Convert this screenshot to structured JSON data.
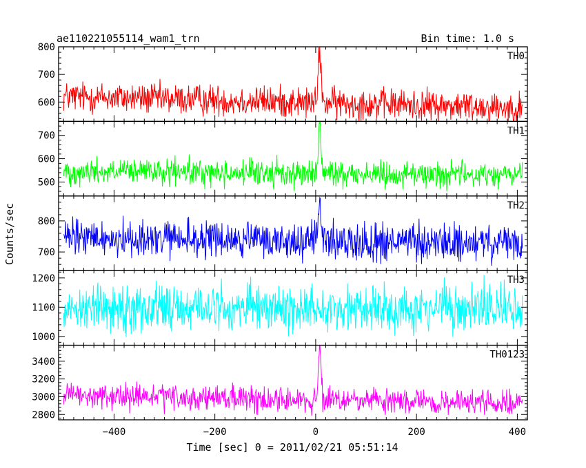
{
  "header": {
    "title": "ae110221055114_wam1_trn",
    "bin_time": "Bin time: 1.0 s"
  },
  "xlabel": "Time [sec] 0 = 2011/02/21 05:51:14",
  "ylabel": "Counts/sec",
  "chart_data": {
    "type": "line",
    "x_range": [
      -510,
      420
    ],
    "x_ticks": [
      -400,
      -200,
      0,
      200,
      400
    ],
    "x_tick_labels": [
      "−400",
      "−200",
      "0",
      "200",
      "400"
    ],
    "panels": [
      {
        "name": "TH0",
        "color": "#ff0000",
        "ylim": [
          530,
          800
        ],
        "y_ticks": [
          600,
          700,
          800
        ],
        "y_tick_labels": [
          "600",
          "700",
          "800"
        ],
        "baseline_start": 620,
        "baseline_end": 580,
        "noise": 28,
        "peak": 800,
        "peak_time": 8
      },
      {
        "name": "TH1",
        "color": "#00ff00",
        "ylim": [
          440,
          760
        ],
        "y_ticks": [
          500,
          600,
          700
        ],
        "y_tick_labels": [
          "500",
          "600",
          "700"
        ],
        "baseline_start": 545,
        "baseline_end": 530,
        "noise": 28,
        "peak": 750,
        "peak_time": 8
      },
      {
        "name": "TH2",
        "color": "#0000ff",
        "ylim": [
          640,
          880
        ],
        "y_ticks": [
          700,
          800
        ],
        "y_tick_labels": [
          "700",
          "800"
        ],
        "baseline_start": 745,
        "baseline_end": 725,
        "noise": 30,
        "peak": 880,
        "peak_time": 8
      },
      {
        "name": "TH3",
        "color": "#00ffff",
        "ylim": [
          970,
          1225
        ],
        "y_ticks": [
          1000,
          1100,
          1200
        ],
        "y_tick_labels": [
          "1000",
          "1100",
          "1200"
        ],
        "baseline_start": 1100,
        "baseline_end": 1095,
        "noise": 40,
        "peak": 1100,
        "peak_time": 8
      },
      {
        "name": "TH0123",
        "color": "#ff00ff",
        "ylim": [
          2740,
          3580
        ],
        "y_ticks": [
          2800,
          3000,
          3200,
          3400
        ],
        "y_tick_labels": [
          "2800",
          "3000",
          "3200",
          "3400"
        ],
        "baseline_start": 3010,
        "baseline_end": 2920,
        "noise": 70,
        "peak": 3540,
        "peak_time": 8
      }
    ]
  }
}
